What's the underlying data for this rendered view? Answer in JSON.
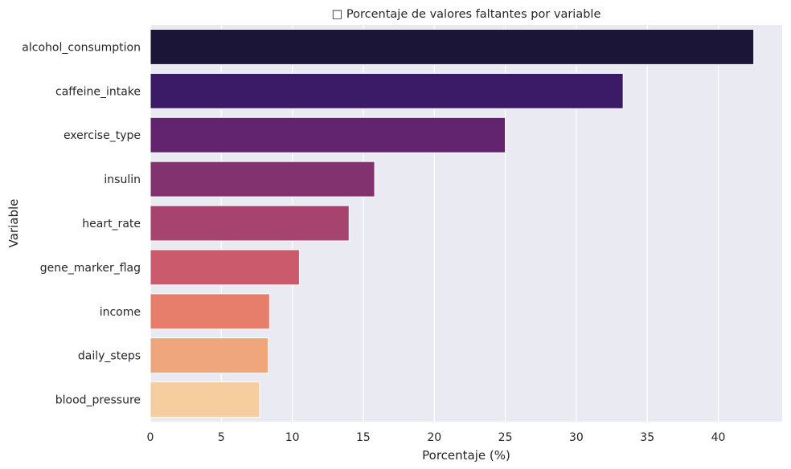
{
  "chart_data": {
    "type": "bar",
    "orientation": "horizontal",
    "title": "□ Porcentaje de valores faltantes por variable",
    "xlabel": "Porcentaje (%)",
    "ylabel": "Variable",
    "xlim": [
      0,
      44.5
    ],
    "xticks": [
      "0",
      "5",
      "10",
      "15",
      "20",
      "25",
      "30",
      "35",
      "40"
    ],
    "grid": true,
    "categories": [
      "alcohol_consumption",
      "caffeine_intake",
      "exercise_type",
      "insulin",
      "heart_rate",
      "gene_marker_flag",
      "income",
      "daily_steps",
      "blood_pressure"
    ],
    "values": [
      42.5,
      33.3,
      25.0,
      15.8,
      14.0,
      10.5,
      8.4,
      8.3,
      7.7
    ],
    "colors": [
      "#1b1538",
      "#3b1a68",
      "#63246f",
      "#82326f",
      "#a7436f",
      "#cc5a6d",
      "#e77e6b",
      "#f0a67c",
      "#f5cd9e"
    ],
    "background": "#eaeaf2"
  }
}
